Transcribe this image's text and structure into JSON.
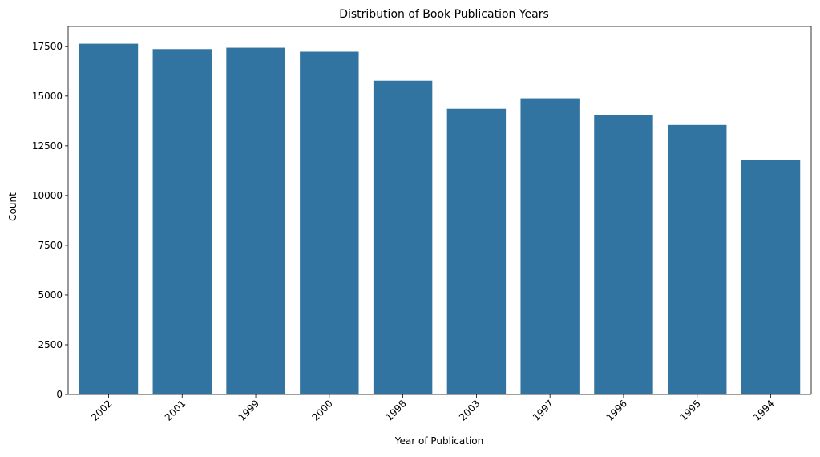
{
  "chart_data": {
    "type": "bar",
    "title": "Distribution of Book Publication Years",
    "xlabel": "Year of Publication",
    "ylabel": "Count",
    "categories": [
      "2002",
      "2001",
      "1999",
      "2000",
      "1998",
      "2003",
      "1997",
      "1996",
      "1995",
      "1994"
    ],
    "values": [
      17630,
      17360,
      17430,
      17230,
      15770,
      14360,
      14890,
      14030,
      13550,
      11800
    ],
    "ylim": [
      0,
      18500
    ],
    "yticks": [
      0,
      2500,
      5000,
      7500,
      10000,
      12500,
      15000,
      17500
    ],
    "x_tick_rotation_deg": 45,
    "grid": false,
    "legend": "none",
    "colors": {
      "bar": "#3274a1",
      "axis": "#000000",
      "background": "#ffffff"
    }
  }
}
